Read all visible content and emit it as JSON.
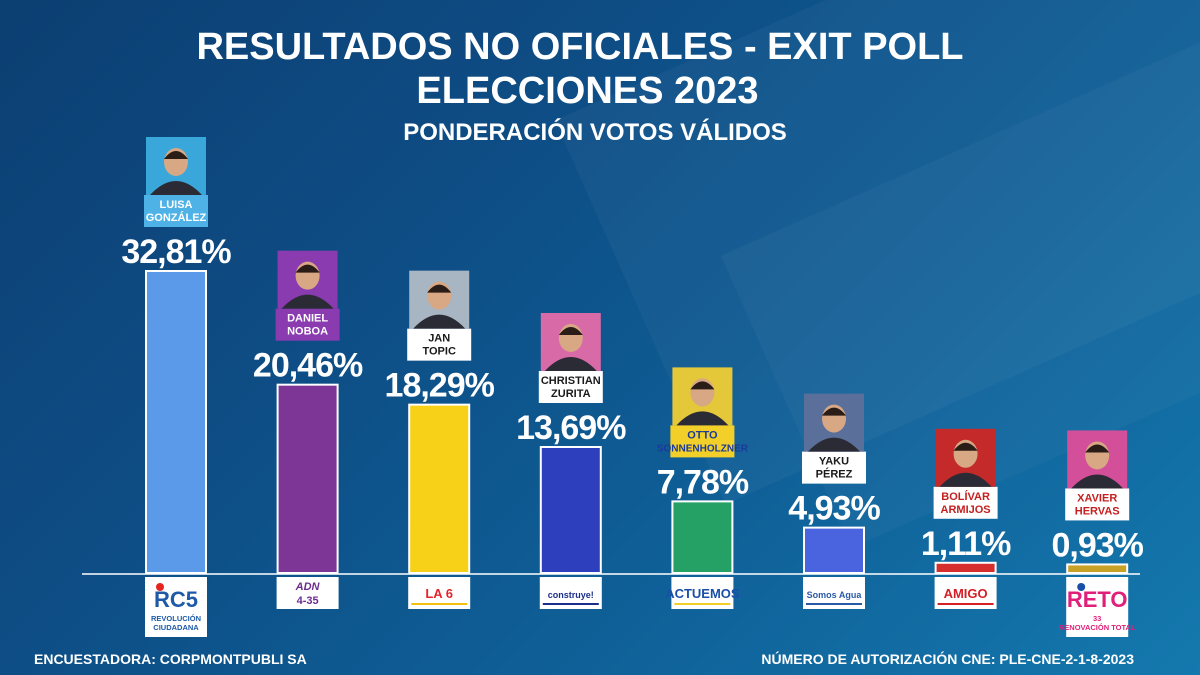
{
  "header": {
    "title_line1": "RESULTADOS NO OFICIALES - EXIT POLL",
    "title_line2": "ELECCIONES 2023",
    "subtitle": "PONDERACIÓN VOTOS VÁLIDOS"
  },
  "chart_data": {
    "type": "bar",
    "title": "RESULTADOS NO OFICIALES - EXIT POLL ELECCIONES 2023",
    "subtitle": "PONDERACIÓN VOTOS VÁLIDOS",
    "xlabel": "",
    "ylabel": "",
    "ylim": [
      0,
      32.81
    ],
    "grid": false,
    "categories": [
      "LUISA GONZÁLEZ",
      "DANIEL NOBOA",
      "JAN TOPIC",
      "CHRISTIAN ZURITA",
      "OTTO SONNENHOLZNER",
      "YAKU PÉREZ",
      "BOLÍVAR ARMIJOS",
      "XAVIER HERVAS"
    ],
    "values": [
      32.81,
      20.46,
      18.29,
      13.69,
      7.78,
      4.93,
      1.11,
      0.93
    ],
    "value_labels": [
      "32,81%",
      "20,46%",
      "18,29%",
      "13,69%",
      "7,78%",
      "4,93%",
      "1,11%",
      "0,93%"
    ],
    "candidates": [
      {
        "line1": "LUISA",
        "line2": "GONZÁLEZ",
        "color": "#5b9ae8",
        "label_bg": "#4fb2e6",
        "label_color": "#ffffff",
        "photo_bg": "#3aa7db",
        "party_lines": [
          "RC5",
          "REVOLUCIÓN",
          "CIUDADANA"
        ],
        "party_color": "#1e5aa8",
        "party_accent": "#e52420"
      },
      {
        "line1": "DANIEL",
        "line2": "NOBOA",
        "color": "#7d3596",
        "label_bg": "#8a3bb0",
        "label_color": "#ffffff",
        "photo_bg": "#8a3bb0",
        "party_lines": [
          "ADN",
          "4-35"
        ],
        "party_color": "#6b2d8e",
        "party_accent": "#6b2d8e"
      },
      {
        "line1": "JAN",
        "line2": "TOPIC",
        "color": "#f7d117",
        "label_bg": "#ffffff",
        "label_color": "#1a1a1a",
        "photo_bg": "#a8b5c2",
        "party_lines": [
          "LA 6"
        ],
        "party_color": "#e3262b",
        "party_accent": "#f4c20d"
      },
      {
        "line1": "CHRISTIAN",
        "line2": "ZURITA",
        "color": "#2e3fbd",
        "label_bg": "#ffffff",
        "label_color": "#1a1a1a",
        "photo_bg": "#d86aa8",
        "party_lines": [
          "construye!"
        ],
        "party_color": "#1a2e8a",
        "party_accent": "#1a2e8a"
      },
      {
        "line1": "OTTO",
        "line2": "SONNENHOLZNER",
        "color": "#26a165",
        "label_bg": "#f3cf2a",
        "label_color": "#1a3a9a",
        "photo_bg": "#e4c83a",
        "party_lines": [
          "ACTUEMOS"
        ],
        "party_color": "#1a4fa8",
        "party_accent": "#f3cf2a"
      },
      {
        "line1": "YAKU",
        "line2": "PÉREZ",
        "color": "#4a64e0",
        "label_bg": "#ffffff",
        "label_color": "#1a1a1a",
        "photo_bg": "#5a6f9a",
        "party_lines": [
          "Somos Agua"
        ],
        "party_color": "#2a5aa8",
        "party_accent": "#2a5aa8"
      },
      {
        "line1": "BOLÍVAR",
        "line2": "ARMIJOS",
        "color": "#d62d2d",
        "label_bg": "#ffffff",
        "label_color": "#c42020",
        "photo_bg": "#c42a2a",
        "party_lines": [
          "AMIGO"
        ],
        "party_color": "#d32027",
        "party_accent": "#d32027"
      },
      {
        "line1": "XAVIER",
        "line2": "HERVAS",
        "color": "#c8a227",
        "label_bg": "#ffffff",
        "label_color": "#c42020",
        "photo_bg": "#d44f9a",
        "party_lines": [
          "RETO",
          "33",
          "RENOVACIÓN TOTAL"
        ],
        "party_color": "#e01f7a",
        "party_accent": "#1a4fa8"
      }
    ]
  },
  "footer": {
    "pollster": "ENCUESTADORA: CORPMONTPUBLI SA",
    "authorization": "NÚMERO DE AUTORIZACIÓN CNE: PLE-CNE-2-1-8-2023"
  }
}
